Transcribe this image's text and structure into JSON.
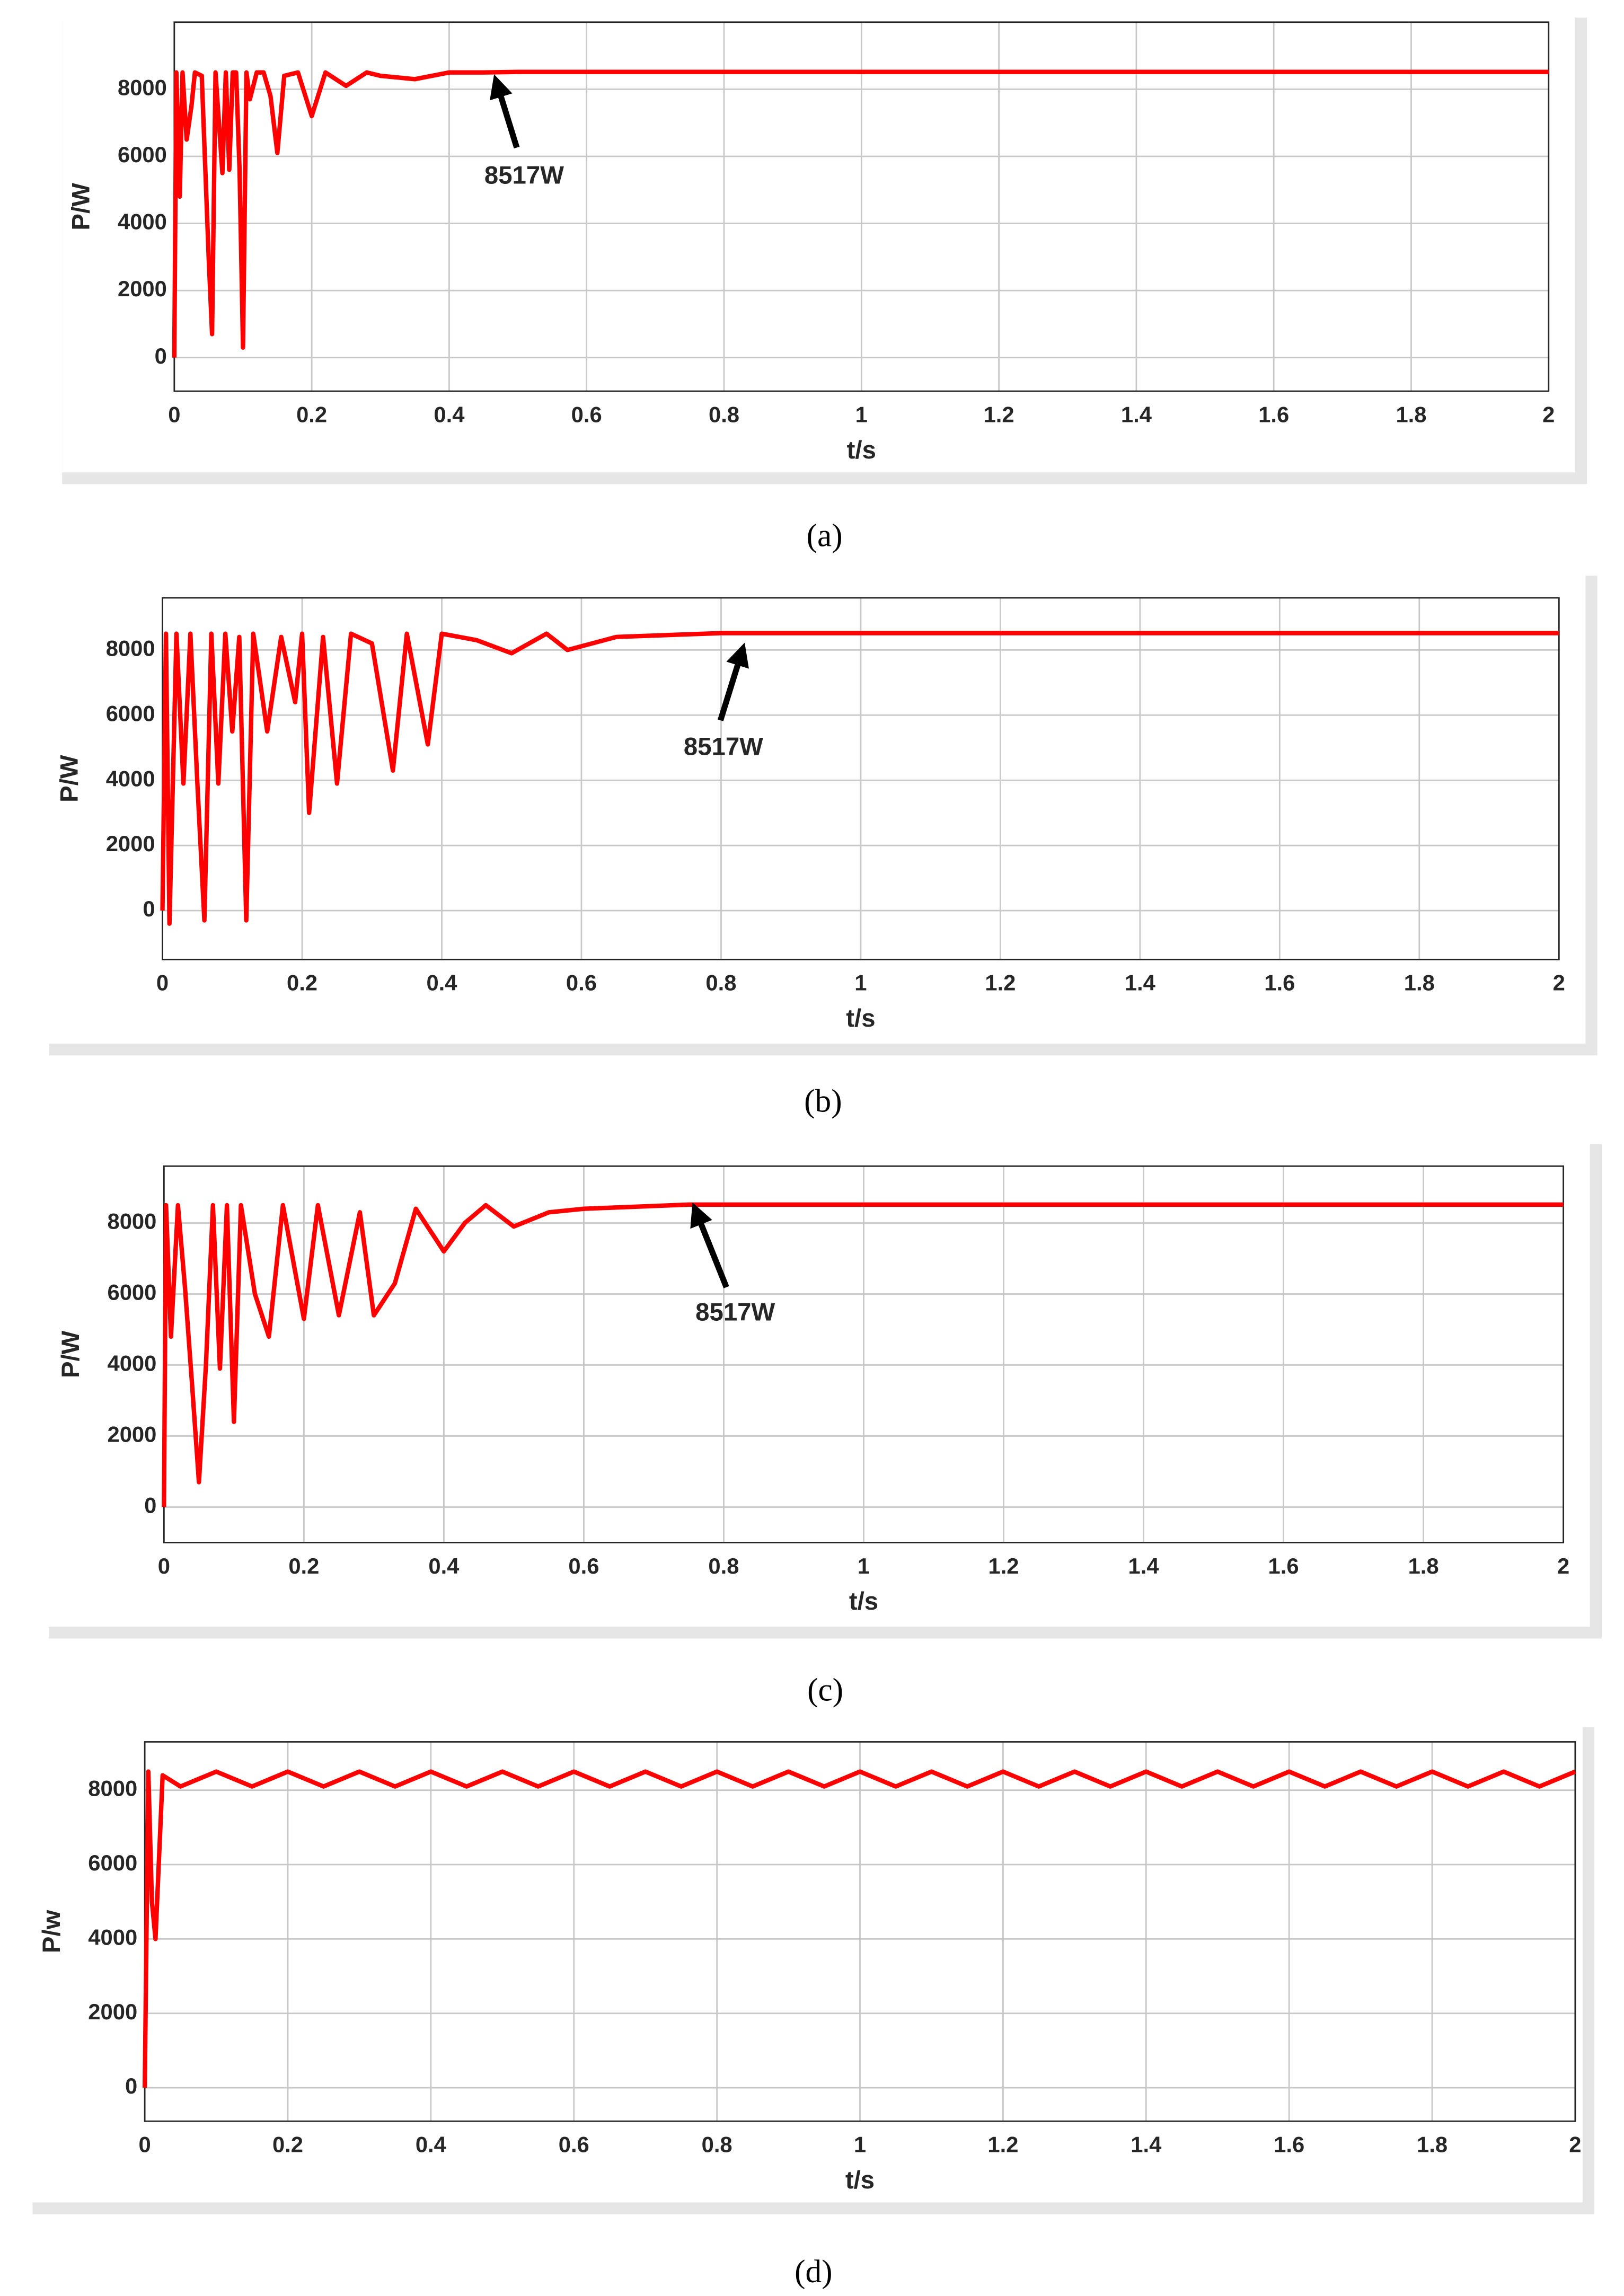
{
  "chart_data": [
    {
      "type": "line",
      "caption": "(a)",
      "xlabel": "t/s",
      "ylabel": "P/W",
      "annotation": "8517W",
      "xlim": [
        0,
        2
      ],
      "xticks": [
        0,
        0.2,
        0.4,
        0.6,
        0.8,
        1,
        1.2,
        1.4,
        1.6,
        1.8,
        2
      ],
      "ylim": [
        -1000,
        10000
      ],
      "yticks": [
        0,
        2000,
        4000,
        6000,
        8000
      ],
      "grid": true,
      "series": [
        {
          "color": "#ff0000",
          "x": [
            0,
            0.003,
            0.008,
            0.012,
            0.018,
            0.025,
            0.03,
            0.04,
            0.05,
            0.055,
            0.06,
            0.07,
            0.075,
            0.08,
            0.085,
            0.09,
            0.095,
            0.1,
            0.105,
            0.11,
            0.12,
            0.13,
            0.14,
            0.15,
            0.16,
            0.18,
            0.2,
            0.22,
            0.25,
            0.28,
            0.3,
            0.35,
            0.4,
            0.45,
            0.5,
            2
          ],
          "values": [
            0,
            8500,
            4800,
            8500,
            6500,
            7500,
            8500,
            8400,
            3000,
            700,
            8500,
            5500,
            8500,
            5600,
            8500,
            8500,
            5600,
            300,
            8500,
            7700,
            8500,
            8500,
            7800,
            6100,
            8400,
            8500,
            7200,
            8500,
            8100,
            8500,
            8400,
            8300,
            8500,
            8500,
            8517,
            8517
          ]
        }
      ]
    },
    {
      "type": "line",
      "caption": "(b)",
      "xlabel": "t/s",
      "ylabel": "P/W",
      "annotation": "8517W",
      "xlim": [
        0,
        2
      ],
      "xticks": [
        0,
        0.2,
        0.4,
        0.6,
        0.8,
        1,
        1.2,
        1.4,
        1.6,
        1.8,
        2
      ],
      "ylim": [
        -1500,
        9600
      ],
      "yticks": [
        0,
        2000,
        4000,
        6000,
        8000
      ],
      "grid": true,
      "series": [
        {
          "color": "#ff0000",
          "x": [
            0,
            0.005,
            0.01,
            0.02,
            0.03,
            0.04,
            0.05,
            0.06,
            0.07,
            0.08,
            0.09,
            0.1,
            0.11,
            0.12,
            0.13,
            0.15,
            0.17,
            0.19,
            0.2,
            0.21,
            0.23,
            0.25,
            0.27,
            0.3,
            0.33,
            0.35,
            0.38,
            0.4,
            0.45,
            0.5,
            0.55,
            0.58,
            0.65,
            0.8,
            2
          ],
          "values": [
            0,
            8500,
            -400,
            8500,
            3900,
            8500,
            3900,
            -300,
            8500,
            3900,
            8500,
            5500,
            8400,
            -300,
            8500,
            5500,
            8400,
            6400,
            8500,
            3000,
            8400,
            3900,
            8500,
            8200,
            4300,
            8500,
            5100,
            8500,
            8300,
            7900,
            8500,
            8000,
            8400,
            8517,
            8517
          ]
        }
      ]
    },
    {
      "type": "line",
      "caption": "(c)",
      "xlabel": "t/s",
      "ylabel": "P/W",
      "annotation": "8517W",
      "xlim": [
        0,
        2
      ],
      "xticks": [
        0,
        0.2,
        0.4,
        0.6,
        0.8,
        1,
        1.2,
        1.4,
        1.6,
        1.8,
        2
      ],
      "ylim": [
        -1000,
        9600
      ],
      "yticks": [
        0,
        2000,
        4000,
        6000,
        8000
      ],
      "grid": true,
      "series": [
        {
          "color": "#ff0000",
          "x": [
            0,
            0.003,
            0.01,
            0.02,
            0.03,
            0.04,
            0.05,
            0.06,
            0.07,
            0.08,
            0.09,
            0.1,
            0.11,
            0.13,
            0.15,
            0.17,
            0.2,
            0.22,
            0.25,
            0.28,
            0.3,
            0.33,
            0.36,
            0.4,
            0.43,
            0.46,
            0.5,
            0.55,
            0.6,
            0.75,
            2
          ],
          "values": [
            0,
            8500,
            4800,
            8500,
            6200,
            3500,
            700,
            4000,
            8500,
            3900,
            8500,
            2400,
            8500,
            6000,
            4800,
            8500,
            5300,
            8500,
            5400,
            8300,
            5400,
            6300,
            8400,
            7200,
            8000,
            8500,
            7900,
            8300,
            8400,
            8517,
            8517
          ]
        }
      ]
    },
    {
      "type": "line",
      "caption": "(d)",
      "xlabel": "t/s",
      "ylabel": "P/w",
      "xlim": [
        0,
        2
      ],
      "xticks": [
        0,
        0.2,
        0.4,
        0.6,
        0.8,
        1,
        1.2,
        1.4,
        1.6,
        1.8,
        2
      ],
      "ylim": [
        -900,
        9300
      ],
      "yticks": [
        0,
        2000,
        4000,
        6000,
        8000
      ],
      "grid": true,
      "series": [
        {
          "color": "#ff0000",
          "x": [
            0,
            0.005,
            0.01,
            0.015,
            0.025,
            0.05,
            0.1,
            0.15,
            0.2,
            0.25,
            0.3,
            0.35,
            0.4,
            0.45,
            0.5,
            0.55,
            0.6,
            0.65,
            0.7,
            0.75,
            0.8,
            0.85,
            0.9,
            0.95,
            1,
            1.05,
            1.1,
            1.15,
            1.2,
            1.25,
            1.3,
            1.35,
            1.4,
            1.45,
            1.5,
            1.55,
            1.6,
            1.65,
            1.7,
            1.75,
            1.8,
            1.85,
            1.9,
            1.95,
            2
          ],
          "values": [
            0,
            8500,
            5000,
            4000,
            8400,
            8100,
            8500,
            8100,
            8500,
            8100,
            8500,
            8100,
            8500,
            8100,
            8500,
            8100,
            8500,
            8100,
            8500,
            8100,
            8500,
            8100,
            8500,
            8100,
            8500,
            8100,
            8500,
            8100,
            8500,
            8100,
            8500,
            8100,
            8500,
            8100,
            8500,
            8100,
            8500,
            8100,
            8500,
            8100,
            8500,
            8100,
            8500,
            8100,
            8500
          ]
        }
      ]
    }
  ]
}
